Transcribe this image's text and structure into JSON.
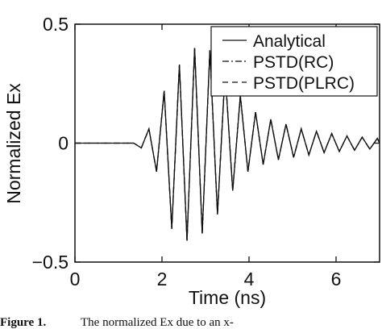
{
  "chart_data": {
    "type": "line",
    "xlabel": "Time (ns)",
    "ylabel": "Normalized Ex",
    "x": [
      0,
      1.35,
      1.525,
      1.7,
      1.875,
      2.05,
      2.225,
      2.4,
      2.575,
      2.75,
      2.925,
      3.1,
      3.275,
      3.45,
      3.625,
      3.8,
      3.975,
      4.15,
      4.325,
      4.5,
      4.675,
      4.85,
      5.025,
      5.2,
      5.375,
      5.55,
      5.725,
      5.9,
      6.075,
      6.25,
      6.425,
      6.6,
      6.775,
      6.95,
      7
    ],
    "series": [
      {
        "name": "Analytical",
        "color": "#111111",
        "dash": "none",
        "values": [
          0,
          0,
          -0.02,
          0.06,
          -0.12,
          0.22,
          -0.36,
          0.33,
          -0.41,
          0.4,
          -0.38,
          0.39,
          -0.3,
          0.3,
          -0.2,
          0.2,
          -0.12,
          0.13,
          -0.09,
          0.1,
          -0.07,
          0.08,
          -0.06,
          0.06,
          -0.05,
          0.05,
          -0.04,
          0.04,
          -0.035,
          0.03,
          -0.03,
          0.025,
          -0.025,
          0.02,
          0
        ]
      },
      {
        "name": "PSTD(RC)",
        "color": "#111111",
        "dash": "8 3 2 3",
        "values": [
          0,
          0,
          -0.02,
          0.06,
          -0.12,
          0.22,
          -0.36,
          0.33,
          -0.41,
          0.4,
          -0.38,
          0.39,
          -0.3,
          0.3,
          -0.2,
          0.2,
          -0.12,
          0.13,
          -0.09,
          0.1,
          -0.07,
          0.08,
          -0.06,
          0.06,
          -0.05,
          0.05,
          -0.04,
          0.04,
          -0.035,
          0.03,
          -0.03,
          0.025,
          -0.025,
          0.02,
          0
        ]
      },
      {
        "name": "PSTD(PLRC)",
        "color": "#111111",
        "dash": "7 5",
        "values": [
          0,
          0,
          -0.02,
          0.06,
          -0.12,
          0.22,
          -0.36,
          0.33,
          -0.41,
          0.4,
          -0.38,
          0.39,
          -0.3,
          0.3,
          -0.2,
          0.2,
          -0.12,
          0.13,
          -0.09,
          0.1,
          -0.07,
          0.08,
          -0.06,
          0.06,
          -0.05,
          0.05,
          -0.04,
          0.04,
          -0.035,
          0.03,
          -0.03,
          0.025,
          -0.025,
          0.02,
          0
        ]
      }
    ],
    "xlim": [
      0,
      7
    ],
    "xticks": [
      0,
      2,
      4,
      6
    ],
    "ylim": [
      -0.5,
      0.5
    ],
    "yticks": [
      {
        "value": -0.5,
        "label": "−0.5"
      },
      0,
      0.5
    ],
    "legend": "upper right",
    "caption": {
      "label": "Figure 1.",
      "text": "The normalized Ex due to an x-"
    }
  }
}
